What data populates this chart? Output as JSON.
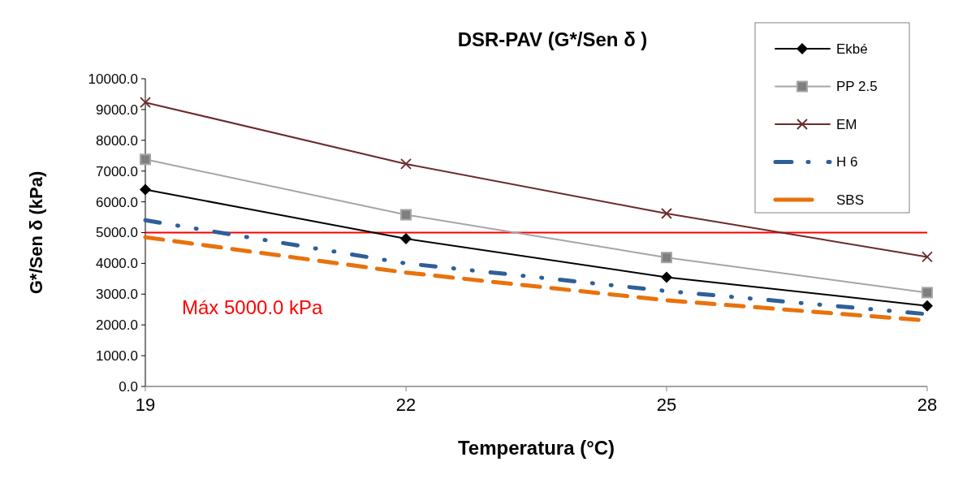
{
  "chart_data": {
    "type": "line",
    "title": "DSR-PAV (G*/Sen δ )",
    "xlabel": "Temperatura (°C)",
    "ylabel": "G*/Sen δ (kPa)",
    "x": [
      19,
      22,
      25,
      28
    ],
    "xlim": [
      19,
      28
    ],
    "xticks": [
      19,
      22,
      25,
      28
    ],
    "ylim": [
      0,
      10000
    ],
    "yticks": [
      {
        "value": 0,
        "label": "0.0"
      },
      {
        "value": 1000,
        "label": "1000.0"
      },
      {
        "value": 2000,
        "label": "2000.0"
      },
      {
        "value": 3000,
        "label": "3000.0"
      },
      {
        "value": 4000,
        "label": "4000.0"
      },
      {
        "value": 5000,
        "label": "5000.0"
      },
      {
        "value": 6000,
        "label": "6000.0"
      },
      {
        "value": 7000,
        "label": "7000.0"
      },
      {
        "value": 8000,
        "label": "8000.0"
      },
      {
        "value": 9000,
        "label": "9000.0"
      },
      {
        "value": 10000,
        "label": "10000.0"
      }
    ],
    "series": [
      {
        "name": "Ekbé",
        "color": "#000000",
        "marker": "diamond",
        "line_style": "solid",
        "values": [
          6400,
          4800,
          3550,
          2620
        ]
      },
      {
        "name": "PP 2.5",
        "color": "#a5a5a5",
        "marker": "square",
        "line_style": "solid",
        "values": [
          7380,
          5580,
          4190,
          3050
        ]
      },
      {
        "name": "EM",
        "color": "#6b2a2a",
        "marker": "cross",
        "line_style": "solid",
        "values": [
          9230,
          7230,
          5620,
          4210
        ]
      },
      {
        "name": "H 6",
        "color": "#2f5f98",
        "marker": "none",
        "line_style": "dashdot",
        "values": [
          5400,
          4000,
          3100,
          2350
        ]
      },
      {
        "name": "SBS",
        "color": "#e8720c",
        "marker": "none",
        "line_style": "dashed",
        "values": [
          4850,
          3700,
          2800,
          2140
        ]
      }
    ],
    "ref_lines": [
      {
        "axis": "y",
        "value": 5000,
        "label": "Máx 5000.0 kPa",
        "color": "#ff0000"
      }
    ],
    "legend": "top right",
    "grid": false
  }
}
